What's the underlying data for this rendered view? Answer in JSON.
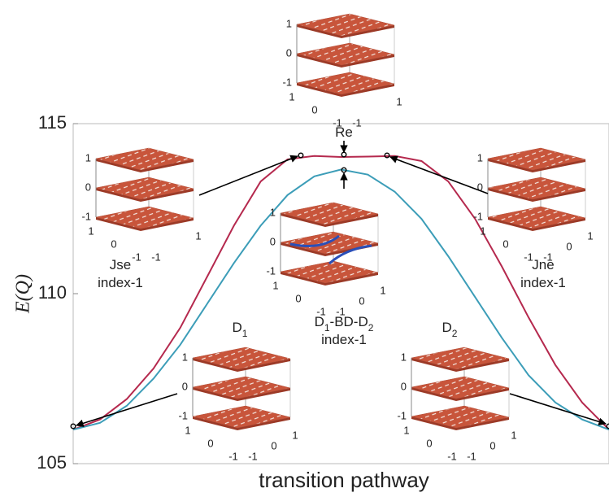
{
  "chart_data": {
    "type": "line",
    "xlabel": "transition pathway",
    "ylabel": "E(Q)",
    "ylim": [
      105,
      115
    ],
    "yticks": [
      105,
      110,
      115
    ],
    "categories": [
      null,
      null,
      null,
      null,
      null,
      null,
      null,
      null,
      null,
      null,
      null,
      null,
      null,
      null,
      null,
      null,
      null,
      null,
      null,
      null,
      null
    ],
    "series": [
      {
        "color": "#b5294e",
        "values": [
          106.0,
          106.3,
          106.9,
          107.8,
          109.0,
          110.5,
          112.0,
          113.3,
          113.95,
          114.05,
          114.02,
          114.03,
          114.05,
          113.9,
          113.3,
          112.2,
          110.8,
          109.3,
          107.9,
          106.8,
          106.0
        ]
      },
      {
        "color": "#3c9db8",
        "values": [
          106.0,
          106.2,
          106.7,
          107.5,
          108.5,
          109.7,
          110.9,
          112.0,
          112.9,
          113.45,
          113.65,
          113.5,
          113.0,
          112.2,
          111.1,
          109.9,
          108.7,
          107.6,
          106.8,
          106.3,
          106.0
        ]
      }
    ],
    "insets": [
      {
        "label": [
          [
            "Re"
          ]
        ],
        "zticks": [
          1,
          0,
          -1
        ],
        "aticks": [
          1,
          0,
          -1
        ],
        "bticks": [
          -1,
          1
        ]
      },
      {
        "label": [
          [
            "Jse"
          ],
          [
            "index-1"
          ]
        ],
        "zticks": [
          1,
          0,
          -1
        ],
        "aticks": [
          1,
          0,
          -1
        ],
        "bticks": [
          -1,
          1
        ]
      },
      {
        "label": [
          [
            "Jne"
          ],
          [
            "index-1"
          ]
        ],
        "zticks": [
          1,
          0,
          -1
        ],
        "aticks": [
          1,
          0,
          -1
        ],
        "bticks": [
          -1,
          0,
          1
        ]
      },
      {
        "label": [
          [
            "D",
            "1",
            "-BD-D",
            "2"
          ],
          [
            "index-1"
          ]
        ],
        "zticks": [
          1,
          0,
          -1
        ],
        "aticks": [
          1,
          0,
          -1
        ],
        "bticks": [
          -1,
          0,
          1
        ]
      },
      {
        "label": [
          [
            "D",
            "1"
          ]
        ],
        "zticks": [
          1,
          0,
          -1
        ],
        "aticks": [
          1,
          0,
          -1
        ],
        "bticks": [
          -1,
          0,
          1
        ]
      },
      {
        "label": [
          [
            "D",
            "2"
          ]
        ],
        "zticks": [
          1,
          0,
          -1
        ],
        "aticks": [
          1,
          0,
          -1
        ],
        "bticks": [
          -1,
          0,
          1
        ]
      }
    ]
  }
}
